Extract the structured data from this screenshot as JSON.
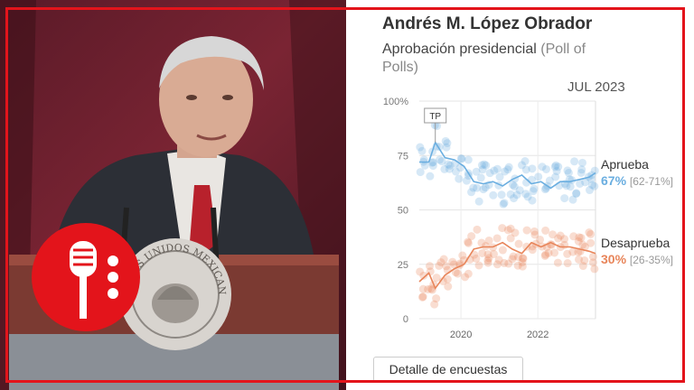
{
  "chart_panel": {
    "title": "Andrés M. López Obrador",
    "subtitle_main": "Aprobación presidencial",
    "subtitle_muted": "(Poll of Polls)",
    "date": "JUL 2023",
    "button_label": "Detalle de encuestas"
  },
  "photo": {
    "seal_text": "ESTADOS UNIDOS MEXICANOS",
    "brand_color": "#e3141b"
  },
  "chart_data": {
    "type": "line",
    "x_ticks": [
      "2020",
      "2022"
    ],
    "y_ticks": [
      "100%",
      "75",
      "50",
      "25",
      "0"
    ],
    "ylim": [
      0,
      100
    ],
    "xlim": [
      "2018-12",
      "2023-07"
    ],
    "annotation": "TP",
    "grid": true,
    "series": [
      {
        "name": "Aprueba",
        "color": "#6aaee0",
        "latest": "67%",
        "range": "[62-71%]",
        "x": [
          "2018-12",
          "2019-03",
          "2019-05",
          "2019-08",
          "2019-11",
          "2020-02",
          "2020-05",
          "2020-08",
          "2020-11",
          "2021-02",
          "2021-05",
          "2021-08",
          "2021-11",
          "2022-02",
          "2022-05",
          "2022-08",
          "2022-11",
          "2023-02",
          "2023-05",
          "2023-07"
        ],
        "values": [
          72,
          72,
          81,
          74,
          73,
          70,
          63,
          62,
          63,
          61,
          64,
          66,
          62,
          63,
          60,
          63,
          63,
          64,
          65,
          67
        ]
      },
      {
        "name": "Desaprueba",
        "color": "#e8855a",
        "latest": "30%",
        "range": "[26-35%]",
        "x": [
          "2018-12",
          "2019-03",
          "2019-05",
          "2019-08",
          "2019-11",
          "2020-02",
          "2020-05",
          "2020-08",
          "2020-11",
          "2021-02",
          "2021-05",
          "2021-08",
          "2021-11",
          "2022-02",
          "2022-05",
          "2022-08",
          "2022-11",
          "2023-02",
          "2023-05",
          "2023-07"
        ],
        "values": [
          17,
          21,
          14,
          20,
          23,
          25,
          32,
          33,
          33,
          35,
          32,
          30,
          35,
          33,
          35,
          33,
          33,
          32,
          31,
          30
        ]
      }
    ]
  }
}
